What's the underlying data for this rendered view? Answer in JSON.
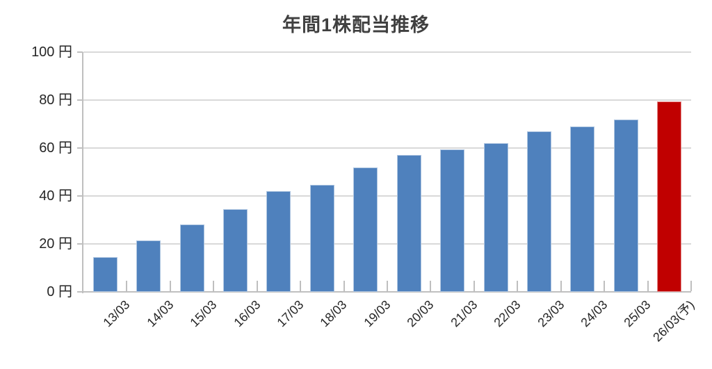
{
  "chart_data": {
    "type": "bar",
    "title": "年間1株配当推移",
    "unit": "円",
    "categories": [
      "13/03",
      "14/03",
      "15/03",
      "16/03",
      "17/03",
      "18/03",
      "19/03",
      "20/03",
      "21/03",
      "22/03",
      "23/03",
      "24/03",
      "25/03",
      "26/03(予)"
    ],
    "values": [
      14.5,
      21.5,
      28,
      34.5,
      42,
      44.5,
      52,
      57,
      59.5,
      62,
      67,
      69,
      72,
      79.5
    ],
    "series_note": "last category is forecast (予) highlighted in red",
    "forecast_index": 13,
    "bar_color_default": "#4F81BD",
    "bar_color_forecast": "#C00000",
    "ylim": [
      0,
      100
    ],
    "yticks": [
      0,
      20,
      40,
      60,
      80,
      100
    ],
    "ytick_labels": [
      "0 円",
      "20 円",
      "40 円",
      "60 円",
      "80 円",
      "100 円"
    ],
    "xlabel": "",
    "ylabel": "",
    "grid": true,
    "legend": false,
    "gridline_color": "#D9D9D9",
    "axis_color": "#BFBFBF",
    "text_color": "#262626",
    "title_color": "#404040"
  }
}
